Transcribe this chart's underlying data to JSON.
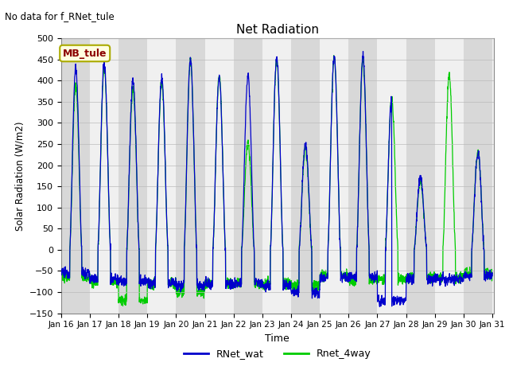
{
  "title": "Net Radiation",
  "xlabel": "Time",
  "ylabel": "Solar Radiation (W/m2)",
  "no_data_text": "No data for f_RNet_tule",
  "legend_label": "MB_tule",
  "line1_label": "RNet_wat",
  "line2_label": "Rnet_4way",
  "line1_color": "#0000cc",
  "line2_color": "#00cc00",
  "ylim": [
    -150,
    500
  ],
  "yticks": [
    -150,
    -100,
    -50,
    0,
    50,
    100,
    150,
    200,
    250,
    300,
    350,
    400,
    450,
    500
  ],
  "xtick_labels": [
    "Jan 16",
    "Jan 17",
    "Jan 18",
    "Jan 19",
    "Jan 20",
    "Jan 21",
    "Jan 22",
    "Jan 23",
    "Jan 24",
    "Jan 25",
    "Jan 26",
    "Jan 27",
    "Jan 28",
    "Jan 29",
    "Jan 30",
    "Jan 31"
  ],
  "band_color_odd": "#d8d8d8",
  "band_color_even": "#f0f0f0",
  "background_color": "#ffffff",
  "figwidth": 6.4,
  "figheight": 4.8,
  "dpi": 100
}
